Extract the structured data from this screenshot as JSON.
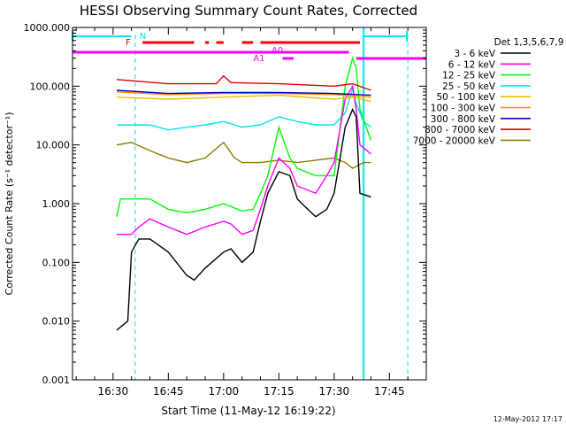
{
  "chart_data": {
    "type": "line",
    "title": "HESSI Observing Summary Count Rates, Corrected",
    "xlabel": "Start Time (11-May-12 16:19:22)",
    "ylabel": "Corrected Count Rate (s⁻¹ detector⁻¹)",
    "timestamp": "12-May-2012 17:17",
    "legend_title": "Det 1,3,5,6,7,9",
    "legend_position": "right",
    "y_scale": "log",
    "ylim": [
      0.001,
      1000
    ],
    "xlim": [
      "16:19",
      "17:55"
    ],
    "x_ticks": [
      "16:30",
      "16:45",
      "17:00",
      "17:15",
      "17:30",
      "17:45"
    ],
    "y_ticks": [
      "0.001",
      "0.010",
      "0.100",
      "1.000",
      "10.000",
      "100.000",
      "1000.000"
    ],
    "flags": [
      {
        "label": "N",
        "color": "#00e5ee"
      },
      {
        "label": "F",
        "color": "#ff0000"
      },
      {
        "label": "A0",
        "color": "#ff00ff"
      },
      {
        "label": "A1",
        "color": "#ff00ff"
      }
    ],
    "series": [
      {
        "name": "3 - 6 keV",
        "color": "#000000",
        "points": [
          [
            "16:31",
            0.007
          ],
          [
            "16:34",
            0.01
          ],
          [
            "16:35",
            0.15
          ],
          [
            "16:37",
            0.25
          ],
          [
            "16:40",
            0.25
          ],
          [
            "16:45",
            0.15
          ],
          [
            "16:50",
            0.06
          ],
          [
            "16:52",
            0.05
          ],
          [
            "16:55",
            0.08
          ],
          [
            "17:00",
            0.15
          ],
          [
            "17:02",
            0.17
          ],
          [
            "17:05",
            0.1
          ],
          [
            "17:08",
            0.15
          ],
          [
            "17:10",
            0.5
          ],
          [
            "17:12",
            1.5
          ],
          [
            "17:15",
            3.5
          ],
          [
            "17:18",
            3
          ],
          [
            "17:20",
            1.2
          ],
          [
            "17:22",
            0.9
          ],
          [
            "17:25",
            0.6
          ],
          [
            "17:28",
            0.8
          ],
          [
            "17:30",
            1.5
          ],
          [
            "17:33",
            20
          ],
          [
            "17:35",
            40
          ],
          [
            "17:36",
            30
          ],
          [
            "17:37",
            1.5
          ],
          [
            "17:40",
            1.3
          ]
        ]
      },
      {
        "name": "6 - 12 keV",
        "color": "#ff00ff",
        "points": [
          [
            "16:31",
            0.3
          ],
          [
            "16:35",
            0.3
          ],
          [
            "16:37",
            0.4
          ],
          [
            "16:40",
            0.55
          ],
          [
            "16:45",
            0.4
          ],
          [
            "16:50",
            0.3
          ],
          [
            "16:55",
            0.4
          ],
          [
            "17:00",
            0.5
          ],
          [
            "17:02",
            0.45
          ],
          [
            "17:05",
            0.3
          ],
          [
            "17:08",
            0.35
          ],
          [
            "17:10",
            0.8
          ],
          [
            "17:12",
            2
          ],
          [
            "17:15",
            6
          ],
          [
            "17:18",
            4
          ],
          [
            "17:20",
            2
          ],
          [
            "17:25",
            1.5
          ],
          [
            "17:28",
            3
          ],
          [
            "17:30",
            5
          ],
          [
            "17:33",
            60
          ],
          [
            "17:35",
            100
          ],
          [
            "17:36",
            40
          ],
          [
            "17:37",
            10
          ],
          [
            "17:40",
            7
          ]
        ]
      },
      {
        "name": "12 - 25 keV",
        "color": "#00ff00",
        "points": [
          [
            "16:31",
            0.6
          ],
          [
            "16:32",
            1.2
          ],
          [
            "16:40",
            1.2
          ],
          [
            "16:45",
            0.8
          ],
          [
            "16:50",
            0.7
          ],
          [
            "16:55",
            0.8
          ],
          [
            "17:00",
            1
          ],
          [
            "17:05",
            0.75
          ],
          [
            "17:08",
            0.8
          ],
          [
            "17:10",
            1.5
          ],
          [
            "17:12",
            3
          ],
          [
            "17:15",
            20
          ],
          [
            "17:18",
            6
          ],
          [
            "17:20",
            4
          ],
          [
            "17:25",
            3
          ],
          [
            "17:30",
            3
          ],
          [
            "17:33",
            100
          ],
          [
            "17:35",
            300
          ],
          [
            "17:36",
            200
          ],
          [
            "17:37",
            40
          ],
          [
            "17:40",
            12
          ]
        ]
      },
      {
        "name": "25 - 50 keV",
        "color": "#00e5ee",
        "points": [
          [
            "16:31",
            22
          ],
          [
            "16:40",
            22
          ],
          [
            "16:45",
            18
          ],
          [
            "16:50",
            20
          ],
          [
            "16:55",
            22
          ],
          [
            "17:00",
            25
          ],
          [
            "17:05",
            20
          ],
          [
            "17:10",
            22
          ],
          [
            "17:15",
            30
          ],
          [
            "17:20",
            25
          ],
          [
            "17:25",
            22
          ],
          [
            "17:30",
            22
          ],
          [
            "17:33",
            35
          ],
          [
            "17:35",
            90
          ],
          [
            "17:36",
            50
          ],
          [
            "17:38",
            25
          ],
          [
            "17:40",
            20
          ]
        ]
      },
      {
        "name": "50 - 100 keV",
        "color": "#e8c000",
        "points": [
          [
            "16:31",
            65
          ],
          [
            "16:45",
            60
          ],
          [
            "17:00",
            65
          ],
          [
            "17:15",
            70
          ],
          [
            "17:30",
            60
          ],
          [
            "17:35",
            65
          ],
          [
            "17:40",
            55
          ]
        ]
      },
      {
        "name": "100 - 300 keV",
        "color": "#ff8c00",
        "points": [
          [
            "16:31",
            80
          ],
          [
            "16:45",
            72
          ],
          [
            "17:00",
            75
          ],
          [
            "17:15",
            75
          ],
          [
            "17:30",
            72
          ],
          [
            "17:40",
            65
          ]
        ]
      },
      {
        "name": "300 - 800 keV",
        "color": "#0000cd",
        "points": [
          [
            "16:31",
            85
          ],
          [
            "16:45",
            75
          ],
          [
            "17:00",
            78
          ],
          [
            "17:15",
            78
          ],
          [
            "17:30",
            75
          ],
          [
            "17:40",
            70
          ]
        ]
      },
      {
        "name": "800 - 7000 keV",
        "color": "#e00000",
        "points": [
          [
            "16:31",
            130
          ],
          [
            "16:45",
            110
          ],
          [
            "16:58",
            110
          ],
          [
            "17:00",
            150
          ],
          [
            "17:02",
            115
          ],
          [
            "17:15",
            110
          ],
          [
            "17:30",
            100
          ],
          [
            "17:35",
            110
          ],
          [
            "17:40",
            85
          ]
        ]
      },
      {
        "name": "7000 - 20000 keV",
        "color": "#8b7d00",
        "points": [
          [
            "16:31",
            10
          ],
          [
            "16:35",
            11
          ],
          [
            "16:40",
            8
          ],
          [
            "16:45",
            6
          ],
          [
            "16:50",
            5
          ],
          [
            "16:55",
            6
          ],
          [
            "17:00",
            11
          ],
          [
            "17:03",
            6
          ],
          [
            "17:05",
            5
          ],
          [
            "17:10",
            5
          ],
          [
            "17:15",
            5.5
          ],
          [
            "17:20",
            5
          ],
          [
            "17:25",
            5.5
          ],
          [
            "17:30",
            6
          ],
          [
            "17:33",
            5
          ],
          [
            "17:35",
            4
          ],
          [
            "17:38",
            5
          ],
          [
            "17:40",
            5
          ]
        ]
      }
    ]
  }
}
